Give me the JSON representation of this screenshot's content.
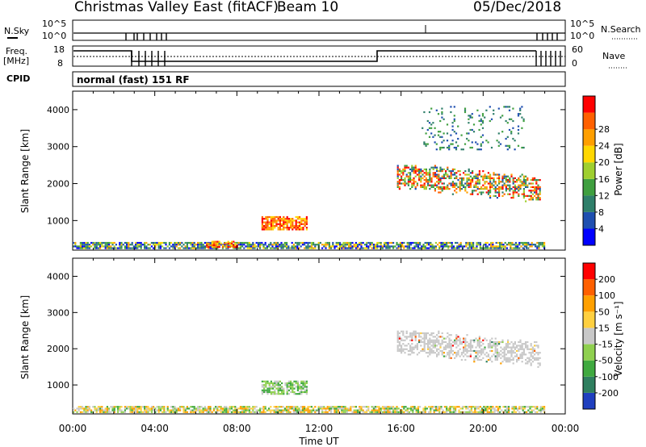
{
  "header": {
    "radar_title": "Christmas Valley East (fitACF)",
    "beam_label": "Beam 10",
    "date": "05/Dec/2018"
  },
  "nsky_panel": {
    "left_label": "N.Sky",
    "right_label": "N.Search",
    "ticks_left": [
      "10^5",
      "10^0"
    ],
    "ticks_right": [
      "10^5",
      "10^0"
    ]
  },
  "freq_panel": {
    "left_label_1": "Freq.",
    "left_label_2": "[MHz]",
    "right_label": "Nave",
    "ticks_left": [
      "18",
      "8"
    ],
    "ticks_right": [
      "60",
      "0"
    ]
  },
  "cpid_panel": {
    "label": "CPID",
    "text": "normal (fast) 151 RF"
  },
  "chart_data": [
    {
      "type": "heatmap",
      "name": "power",
      "ylabel": "Slant Range [km]",
      "y_ticks": [
        1000,
        2000,
        3000,
        4000
      ],
      "ylim": [
        200,
        4500
      ],
      "x_ticks": [
        "00:00",
        "04:00",
        "08:00",
        "12:00",
        "16:00",
        "20:00",
        "00:00"
      ],
      "xlim_hours": [
        0,
        24
      ],
      "colorbar": {
        "label": "Power [dB]",
        "tick_labels": [
          "4",
          "8",
          "12",
          "16",
          "20",
          "24",
          "28"
        ],
        "colors": [
          "#0000ff",
          "#1f4fb0",
          "#2f7f6a",
          "#3f9f3f",
          "#9fcf2f",
          "#ffd700",
          "#ff9f00",
          "#ff6000",
          "#ff0000"
        ]
      },
      "regions": [
        {
          "t0": 0.0,
          "t1": 23.0,
          "r0": 250,
          "r1": 420,
          "level": "low-mixed"
        },
        {
          "t0": 6.5,
          "t1": 8.0,
          "r0": 300,
          "r1": 450,
          "level": "high"
        },
        {
          "t0": 9.2,
          "t1": 11.4,
          "r0": 750,
          "r1": 1120,
          "level": "high"
        },
        {
          "t0": 15.8,
          "t1": 22.8,
          "r0": 1500,
          "r1": 2600,
          "level": "medium-high"
        },
        {
          "t0": 17.0,
          "t1": 22.0,
          "r0": 2900,
          "r1": 4100,
          "level": "sparse"
        }
      ]
    },
    {
      "type": "heatmap",
      "name": "velocity",
      "xlabel": "Time UT",
      "ylabel": "Slant Range [km]",
      "y_ticks": [
        1000,
        2000,
        3000,
        4000
      ],
      "ylim": [
        200,
        4500
      ],
      "x_ticks": [
        "00:00",
        "04:00",
        "08:00",
        "12:00",
        "16:00",
        "20:00",
        "00:00"
      ],
      "xlim_hours": [
        0,
        24
      ],
      "colorbar": {
        "label": "Velocity [m s⁻¹]",
        "tick_labels": [
          "200",
          "100",
          "50",
          "15",
          "-15",
          "-50",
          "-100",
          "-200"
        ],
        "colors": [
          "#1f3fbf",
          "#2f7f5f",
          "#3fa93f",
          "#8fd04f",
          "#c8c8c8",
          "#ffd040",
          "#ffa000",
          "#ff6000",
          "#ff0000"
        ]
      },
      "regions": [
        {
          "t0": 0.0,
          "t1": 23.0,
          "r0": 250,
          "r1": 420,
          "level": "orange-green"
        },
        {
          "t0": 9.2,
          "t1": 11.4,
          "r0": 750,
          "r1": 1120,
          "level": "green"
        },
        {
          "t0": 15.8,
          "t1": 22.8,
          "r0": 1500,
          "r1": 2600,
          "level": "grey"
        }
      ]
    }
  ]
}
